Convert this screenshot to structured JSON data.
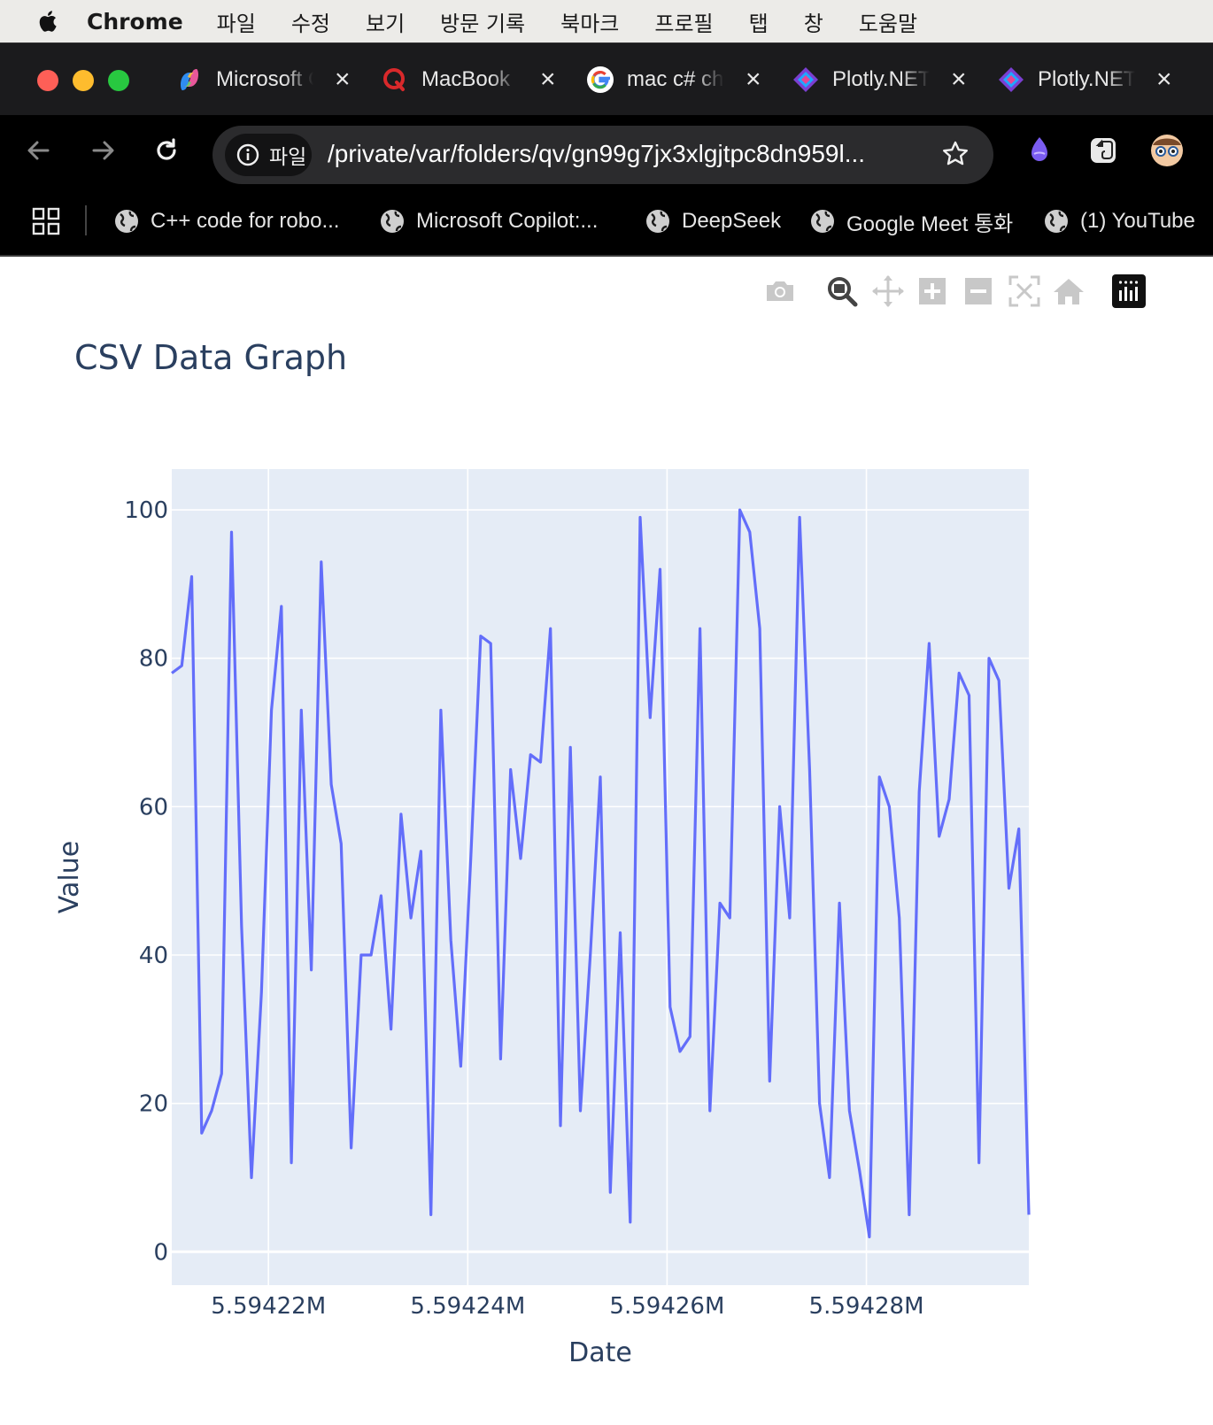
{
  "menubar": {
    "app_name": "Chrome",
    "items": [
      "파일",
      "수정",
      "보기",
      "방문 기록",
      "북마크",
      "프로필",
      "탭",
      "창",
      "도움말"
    ]
  },
  "tabs": [
    {
      "title": "Microsoft Copilot",
      "icon": "copilot-icon"
    },
    {
      "title": "MacBook",
      "icon": "quora-icon"
    },
    {
      "title": "mac c# chart",
      "icon": "google-icon"
    },
    {
      "title": "Plotly.NET",
      "icon": "plotly-icon"
    },
    {
      "title": "Plotly.NET",
      "icon": "plotly-icon"
    }
  ],
  "toolbar": {
    "site_chip": "파일",
    "url": "/private/var/folders/qv/gn99g7jx3xlgjtpc8dn959l..."
  },
  "bookmarks": [
    "C++ code for robo...",
    "Microsoft Copilot:...",
    "DeepSeek",
    "Google Meet 통화",
    "(1) YouTube"
  ],
  "colors": {
    "line": "#636efa",
    "plot_bg": "#e5ecf6",
    "text": "#2a3f5f"
  },
  "chart_data": {
    "type": "line",
    "title": "CSV Data Graph",
    "xlabel": "Date",
    "ylabel": "Value",
    "x_start": 5594210.3,
    "x_step": 100,
    "x_tick_values": [
      5594220,
      5594240,
      5594260,
      5594280
    ],
    "x_tick_labels": [
      "5.59422M",
      "5.59424M",
      "5.59426M",
      "5.59428M"
    ],
    "xlim": [
      5594210.3,
      5594296.3
    ],
    "y_tick_values": [
      0,
      20,
      40,
      60,
      80,
      100
    ],
    "ylim": [
      -4.5,
      105.5
    ],
    "grid": true,
    "series": [
      {
        "values": [
          78,
          79,
          91,
          16,
          19,
          24,
          97,
          44,
          10,
          35,
          73,
          87,
          12,
          73,
          38,
          93,
          63,
          55,
          14,
          40,
          40,
          48,
          30,
          59,
          45,
          54,
          5,
          73,
          42,
          25,
          53,
          83,
          82,
          26,
          65,
          53,
          67,
          66,
          84,
          17,
          68,
          19,
          40,
          64,
          8,
          43,
          4,
          99,
          72,
          92,
          33,
          27,
          29,
          84,
          19,
          47,
          45,
          100,
          97,
          84,
          23,
          60,
          45,
          99,
          65,
          20,
          10,
          47,
          19,
          11,
          2,
          64,
          60,
          45,
          5,
          62,
          82,
          56,
          61,
          78,
          75,
          12,
          80,
          77,
          49,
          57,
          5
        ]
      }
    ]
  }
}
